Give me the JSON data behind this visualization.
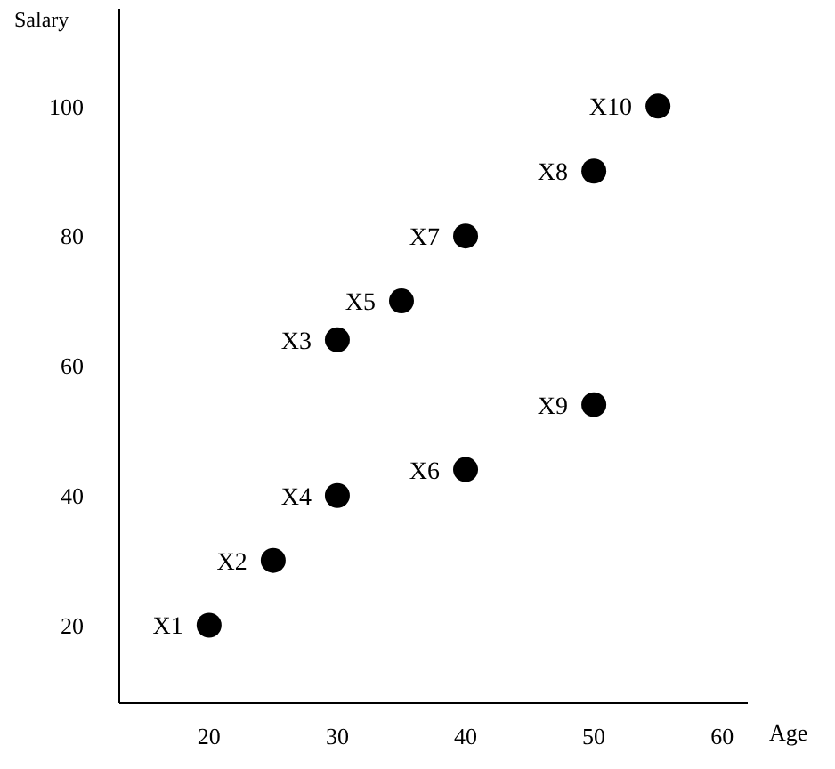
{
  "chart_data": {
    "type": "scatter",
    "xlabel": "Age",
    "ylabel": "Salary",
    "x": [
      20,
      25,
      30,
      30,
      35,
      40,
      40,
      50,
      50,
      55
    ],
    "values": [
      20,
      30,
      64,
      40,
      70,
      44,
      80,
      90,
      54,
      100
    ],
    "value_labels": [
      "X1",
      "X2",
      "X3",
      "X4",
      "X5",
      "X6",
      "X7",
      "X8",
      "X9",
      "X10"
    ],
    "color": "#000000",
    "marker": "circle",
    "xlim": [
      13,
      62
    ],
    "xticks": [
      20,
      30,
      40,
      50,
      60
    ],
    "ylim": [
      8,
      115
    ],
    "yticks": [
      20,
      40,
      60,
      80,
      100
    ],
    "grid": false
  }
}
